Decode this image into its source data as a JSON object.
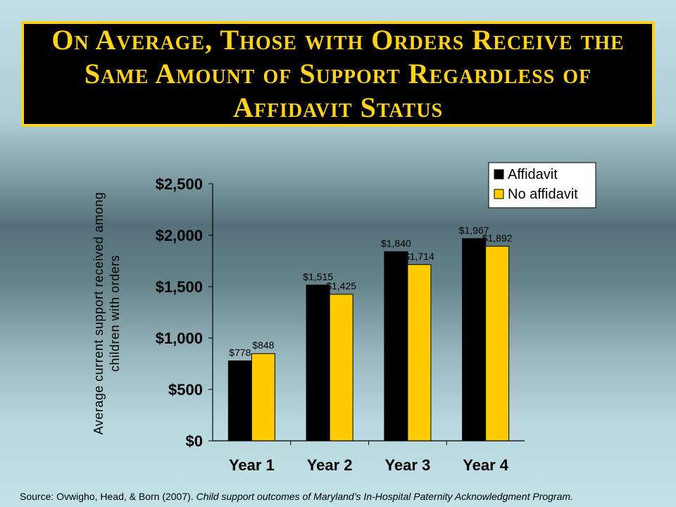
{
  "slide": {
    "title": "On Average, Those with Orders Receive the Same Amount of Support Regardless of Affidavit Status",
    "source_prefix": "Source: Ovwigho, Head, & Born (2007). ",
    "source_citation": "Child support outcomes of Maryland’s In-Hospital Paternity Acknowledgment Program."
  },
  "colors": {
    "title_bg": "#000000",
    "title_text": "#ffd21f",
    "affidavit": "#000000",
    "no_affidavit": "#ffcc00"
  },
  "chart_data": {
    "type": "bar",
    "title": "",
    "categories": [
      "Year 1",
      "Year 2",
      "Year 3",
      "Year 4"
    ],
    "ylabel_lines": [
      "Average current support received among",
      "children with orders"
    ],
    "xlabel": "",
    "ylim": [
      0,
      2500
    ],
    "yticks": [
      0,
      500,
      1000,
      1500,
      2000,
      2500
    ],
    "ytick_labels": [
      "$0",
      "$500",
      "$1,000",
      "$1,500",
      "$2,000",
      "$2,500"
    ],
    "grid": false,
    "legend_position": "top-right",
    "series": [
      {
        "name": "Affidavit",
        "values": [
          778,
          1515,
          1840,
          1967
        ],
        "labels": [
          "$778",
          "$1,515",
          "$1,840",
          "$1,967"
        ],
        "color": "#000000"
      },
      {
        "name": "No affidavit",
        "values": [
          848,
          1425,
          1714,
          1892
        ],
        "labels": [
          "$848",
          "$1,425",
          "$1,714",
          "$1,892"
        ],
        "color": "#ffcc00"
      }
    ]
  }
}
